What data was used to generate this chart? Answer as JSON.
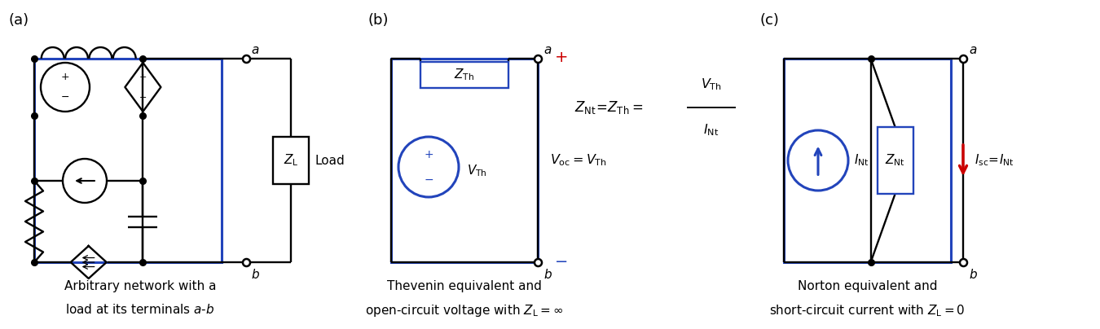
{
  "fig_width": 13.5,
  "fig_height": 4.04,
  "dpi": 100,
  "bg_color": "#ffffff",
  "blue_color": "#2244bb",
  "black_color": "#000000",
  "red_color": "#cc0000",
  "panel_a_label": "(a)",
  "panel_b_label": "(b)",
  "panel_c_label": "(c)",
  "caption_a_1": "Arbitrary network with a",
  "caption_a_2": "load at its terminals $a$-$b$",
  "caption_b_1": "Thevenin equivalent and",
  "caption_b_2": "open-circuit voltage with $Z_{\\mathrm{L}}=\\infty$",
  "caption_c_1": "Norton equivalent and",
  "caption_c_2": "short-circuit current with $Z_{\\mathrm{L}}=0$"
}
